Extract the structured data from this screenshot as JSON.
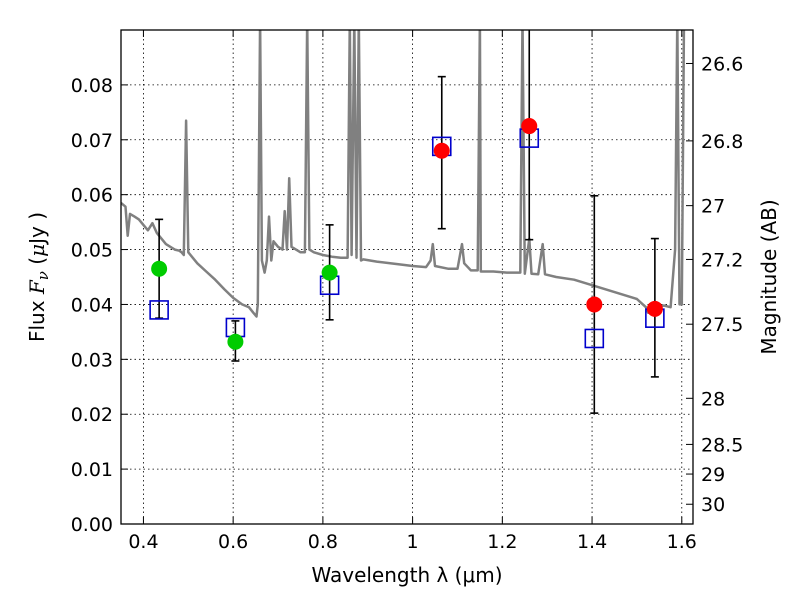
{
  "chart_data": {
    "type": "scatter",
    "xlabel": "Wavelength  λ (μm)",
    "ylabel_parts": [
      "Flux ",
      "F",
      "ν",
      " (",
      "μ",
      "Jy )"
    ],
    "y2label": "Magnitude (AB)",
    "xlim": [
      0.35,
      1.625
    ],
    "ylim": [
      0.0,
      0.09
    ],
    "x_ticks": [
      0.4,
      0.6,
      0.8,
      1.0,
      1.2,
      1.4,
      1.6
    ],
    "x_tick_labels": [
      "0.4",
      "0.6",
      "0.8",
      "1",
      "1.2",
      "1.4",
      "1.6"
    ],
    "y_ticks": [
      0.0,
      0.01,
      0.02,
      0.03,
      0.04,
      0.05,
      0.06,
      0.07,
      0.08
    ],
    "y_tick_labels": [
      "0.00",
      "0.01",
      "0.02",
      "0.03",
      "0.04",
      "0.05",
      "0.06",
      "0.07",
      "0.08"
    ],
    "y2_ticks": [
      {
        "flux": 0.0839,
        "label": "26.6"
      },
      {
        "flux": 0.0698,
        "label": "26.8"
      },
      {
        "flux": 0.058,
        "label": "27"
      },
      {
        "flux": 0.0482,
        "label": "27.2"
      },
      {
        "flux": 0.0364,
        "label": "27.5"
      },
      {
        "flux": 0.0229,
        "label": "28"
      },
      {
        "flux": 0.0145,
        "label": "28.5"
      },
      {
        "flux": 0.0091,
        "label": "29"
      },
      {
        "flux": 0.0036,
        "label": "30"
      }
    ],
    "grid": true,
    "template_color": "#808080",
    "template_spectrum": [
      [
        0.35,
        0.0585
      ],
      [
        0.36,
        0.0578
      ],
      [
        0.365,
        0.0525
      ],
      [
        0.37,
        0.0565
      ],
      [
        0.38,
        0.056
      ],
      [
        0.39,
        0.0555
      ],
      [
        0.4,
        0.0545
      ],
      [
        0.41,
        0.0535
      ],
      [
        0.42,
        0.0548
      ],
      [
        0.43,
        0.053
      ],
      [
        0.44,
        0.052
      ],
      [
        0.45,
        0.051
      ],
      [
        0.46,
        0.0505
      ],
      [
        0.47,
        0.05
      ],
      [
        0.48,
        0.0498
      ],
      [
        0.485,
        0.0495
      ],
      [
        0.49,
        0.049
      ],
      [
        0.495,
        0.0735
      ],
      [
        0.5,
        0.0495
      ],
      [
        0.51,
        0.0485
      ],
      [
        0.52,
        0.0475
      ],
      [
        0.54,
        0.046
      ],
      [
        0.56,
        0.0445
      ],
      [
        0.58,
        0.0428
      ],
      [
        0.6,
        0.0412
      ],
      [
        0.62,
        0.04
      ],
      [
        0.635,
        0.0395
      ],
      [
        0.645,
        0.0385
      ],
      [
        0.652,
        0.0378
      ],
      [
        0.655,
        0.04
      ],
      [
        0.66,
        0.092
      ],
      [
        0.664,
        0.048
      ],
      [
        0.67,
        0.0458
      ],
      [
        0.675,
        0.048
      ],
      [
        0.68,
        0.056
      ],
      [
        0.685,
        0.048
      ],
      [
        0.69,
        0.0515
      ],
      [
        0.7,
        0.0505
      ],
      [
        0.71,
        0.05
      ],
      [
        0.715,
        0.057
      ],
      [
        0.72,
        0.05
      ],
      [
        0.725,
        0.063
      ],
      [
        0.73,
        0.0505
      ],
      [
        0.74,
        0.05
      ],
      [
        0.75,
        0.0495
      ],
      [
        0.76,
        0.0495
      ],
      [
        0.765,
        0.092
      ],
      [
        0.77,
        0.05
      ],
      [
        0.78,
        0.0495
      ],
      [
        0.8,
        0.049
      ],
      [
        0.82,
        0.0487
      ],
      [
        0.84,
        0.0485
      ],
      [
        0.855,
        0.0485
      ],
      [
        0.86,
        0.092
      ],
      [
        0.864,
        0.049
      ],
      [
        0.87,
        0.092
      ],
      [
        0.875,
        0.0485
      ],
      [
        0.88,
        0.092
      ],
      [
        0.885,
        0.048
      ],
      [
        0.89,
        0.0482
      ],
      [
        0.92,
        0.0478
      ],
      [
        0.95,
        0.0475
      ],
      [
        0.98,
        0.0472
      ],
      [
        1.0,
        0.047
      ],
      [
        1.03,
        0.0468
      ],
      [
        1.04,
        0.048
      ],
      [
        1.045,
        0.051
      ],
      [
        1.05,
        0.047
      ],
      [
        1.08,
        0.0465
      ],
      [
        1.1,
        0.0465
      ],
      [
        1.11,
        0.051
      ],
      [
        1.115,
        0.0475
      ],
      [
        1.13,
        0.0462
      ],
      [
        1.145,
        0.0462
      ],
      [
        1.15,
        0.092
      ],
      [
        1.152,
        0.046
      ],
      [
        1.18,
        0.046
      ],
      [
        1.21,
        0.0458
      ],
      [
        1.24,
        0.0458
      ],
      [
        1.245,
        0.092
      ],
      [
        1.25,
        0.0456
      ],
      [
        1.26,
        0.052
      ],
      [
        1.265,
        0.0456
      ],
      [
        1.28,
        0.0455
      ],
      [
        1.29,
        0.051
      ],
      [
        1.295,
        0.0455
      ],
      [
        1.32,
        0.045
      ],
      [
        1.36,
        0.0445
      ],
      [
        1.4,
        0.0435
      ],
      [
        1.44,
        0.0425
      ],
      [
        1.48,
        0.0415
      ],
      [
        1.5,
        0.041
      ],
      [
        1.52,
        0.0395
      ],
      [
        1.525,
        0.0385
      ],
      [
        1.53,
        0.04
      ],
      [
        1.55,
        0.0395
      ],
      [
        1.56,
        0.0398
      ],
      [
        1.575,
        0.0395
      ],
      [
        1.585,
        0.05
      ],
      [
        1.59,
        0.092
      ],
      [
        1.595,
        0.04
      ],
      [
        1.6,
        0.04
      ],
      [
        1.605,
        0.092
      ],
      [
        1.625,
        0.092
      ]
    ],
    "model_points": {
      "marker": "open-square",
      "color": "#0000cc",
      "points": [
        [
          0.435,
          0.039
        ],
        [
          0.605,
          0.0358
        ],
        [
          0.815,
          0.0435
        ],
        [
          1.065,
          0.0688
        ],
        [
          1.26,
          0.0703
        ],
        [
          1.405,
          0.0338
        ],
        [
          1.54,
          0.0375
        ]
      ]
    },
    "observed_points": [
      {
        "x": 0.435,
        "y": 0.0465,
        "err_low": 0.0375,
        "err_high": 0.0555,
        "color": "#00cc00"
      },
      {
        "x": 0.605,
        "y": 0.0332,
        "err_low": 0.0297,
        "err_high": 0.037,
        "color": "#00cc00"
      },
      {
        "x": 0.815,
        "y": 0.0458,
        "err_low": 0.0372,
        "err_high": 0.0545,
        "color": "#00cc00"
      },
      {
        "x": 1.065,
        "y": 0.068,
        "err_low": 0.0538,
        "err_high": 0.0815,
        "color": "#ff0000"
      },
      {
        "x": 1.26,
        "y": 0.0725,
        "err_low": 0.0518,
        "err_high": 0.093,
        "color": "#ff0000"
      },
      {
        "x": 1.405,
        "y": 0.04,
        "err_low": 0.0202,
        "err_high": 0.0598,
        "color": "#ff0000"
      },
      {
        "x": 1.54,
        "y": 0.0392,
        "err_low": 0.0268,
        "err_high": 0.052,
        "color": "#ff0000"
      }
    ]
  }
}
